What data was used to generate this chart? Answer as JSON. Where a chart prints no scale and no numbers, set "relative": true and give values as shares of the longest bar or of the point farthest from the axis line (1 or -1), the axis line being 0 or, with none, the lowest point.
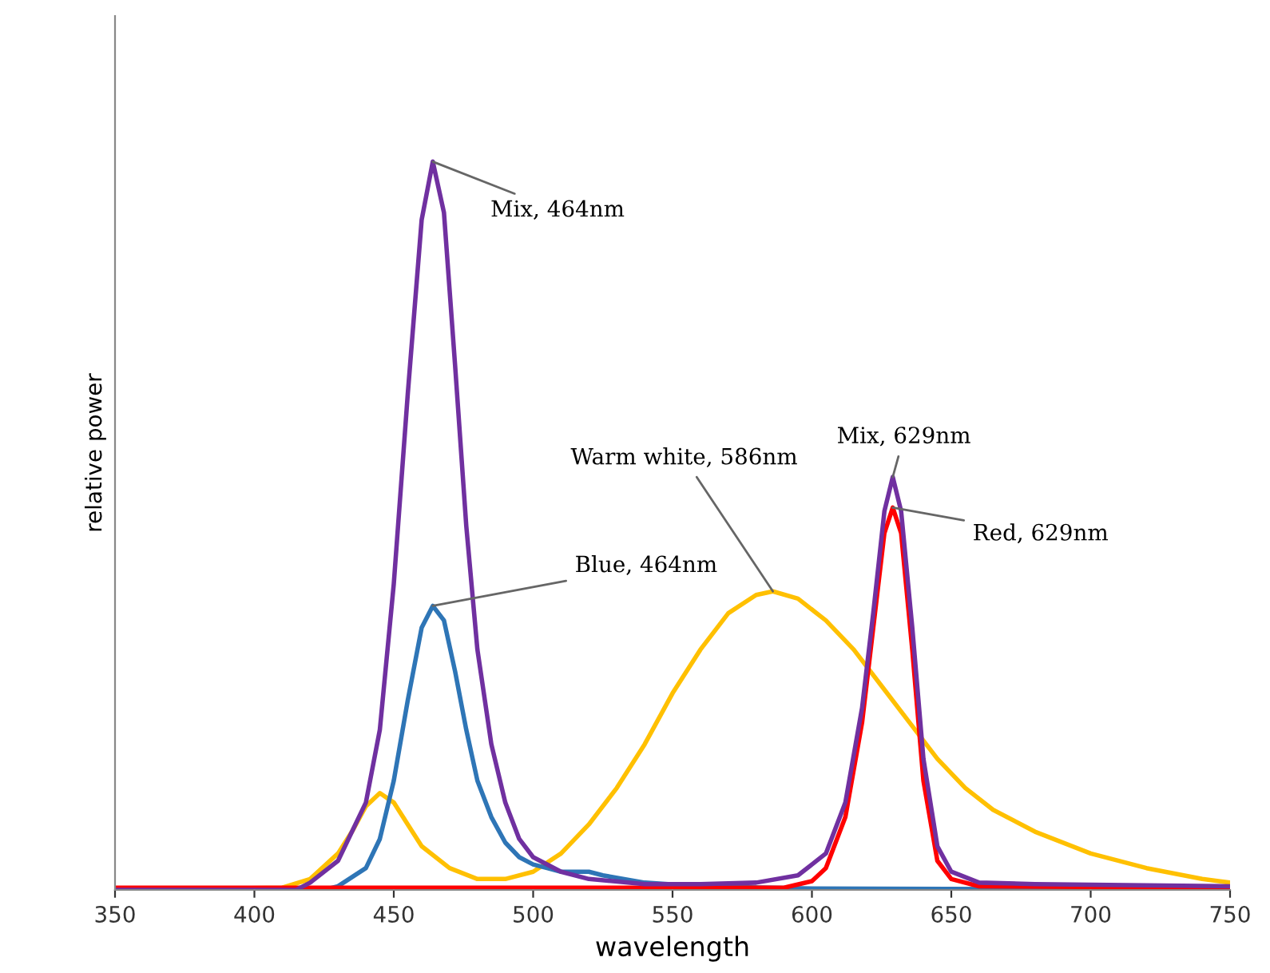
{
  "chart_data": {
    "type": "line",
    "relative": true,
    "xlabel": "wavelength",
    "ylabel": "relative power",
    "xlim": [
      350,
      750
    ],
    "xticks": [
      350,
      400,
      450,
      500,
      550,
      600,
      650,
      700,
      750
    ],
    "grid": false,
    "legend": false,
    "tick_labels": "x",
    "series": [
      {
        "color": "#ffc000",
        "x": [
          350,
          410,
          420,
          430,
          435,
          440,
          445,
          450,
          455,
          460,
          470,
          480,
          490,
          500,
          510,
          520,
          530,
          540,
          550,
          560,
          570,
          580,
          586,
          595,
          605,
          615,
          625,
          635,
          645,
          655,
          665,
          680,
          700,
          720,
          740,
          750
        ],
        "values": [
          0,
          0.003,
          0.015,
          0.05,
          0.08,
          0.115,
          0.133,
          0.12,
          0.09,
          0.06,
          0.03,
          0.015,
          0.015,
          0.025,
          0.05,
          0.09,
          0.14,
          0.2,
          0.27,
          0.33,
          0.38,
          0.405,
          0.41,
          0.4,
          0.37,
          0.33,
          0.28,
          0.23,
          0.18,
          0.14,
          0.11,
          0.08,
          0.05,
          0.03,
          0.015,
          0.01
        ]
      },
      {
        "color": "#2e75b6",
        "x": [
          350,
          425,
          430,
          440,
          445,
          450,
          455,
          460,
          464,
          468,
          472,
          476,
          480,
          485,
          490,
          495,
          500,
          505,
          510,
          520,
          525,
          540,
          560,
          600,
          750
        ],
        "values": [
          0,
          0,
          0.005,
          0.03,
          0.07,
          0.15,
          0.26,
          0.36,
          0.39,
          0.37,
          0.3,
          0.22,
          0.15,
          0.1,
          0.065,
          0.045,
          0.035,
          0.03,
          0.025,
          0.025,
          0.02,
          0.01,
          0.005,
          0.002,
          0
        ]
      },
      {
        "color": "#ff0000",
        "x": [
          350,
          590,
          600,
          605,
          612,
          618,
          622,
          626,
          629,
          632,
          636,
          640,
          645,
          650,
          660,
          750
        ],
        "values": [
          0.003,
          0.003,
          0.012,
          0.03,
          0.1,
          0.23,
          0.36,
          0.49,
          0.525,
          0.49,
          0.33,
          0.15,
          0.04,
          0.015,
          0.005,
          0.003
        ]
      },
      {
        "color": "#7030a0",
        "x": [
          350,
          415,
          420,
          430,
          440,
          445,
          450,
          455,
          460,
          464,
          468,
          472,
          476,
          480,
          485,
          490,
          495,
          500,
          510,
          520,
          540,
          560,
          580,
          595,
          605,
          612,
          618,
          622,
          626,
          629,
          632,
          636,
          640,
          645,
          650,
          660,
          680,
          750
        ],
        "values": [
          0,
          0,
          0.01,
          0.04,
          0.12,
          0.22,
          0.42,
          0.68,
          0.92,
          1.0,
          0.93,
          0.72,
          0.5,
          0.33,
          0.2,
          0.12,
          0.07,
          0.045,
          0.025,
          0.015,
          0.008,
          0.008,
          0.01,
          0.02,
          0.05,
          0.12,
          0.25,
          0.38,
          0.52,
          0.567,
          0.52,
          0.36,
          0.18,
          0.06,
          0.025,
          0.01,
          0.008,
          0.005
        ]
      }
    ],
    "annotations": [
      {
        "text": "Mix, 464nm",
        "x": 464,
        "y": 1.0
      },
      {
        "text": "Blue, 464nm",
        "x": 464,
        "y": 0.39
      },
      {
        "text": "Warm white, 586nm",
        "x": 586,
        "y": 0.41
      },
      {
        "text": "Mix, 629nm",
        "x": 629,
        "y": 0.567
      },
      {
        "text": "Red, 629nm",
        "x": 629,
        "y": 0.525
      }
    ]
  }
}
